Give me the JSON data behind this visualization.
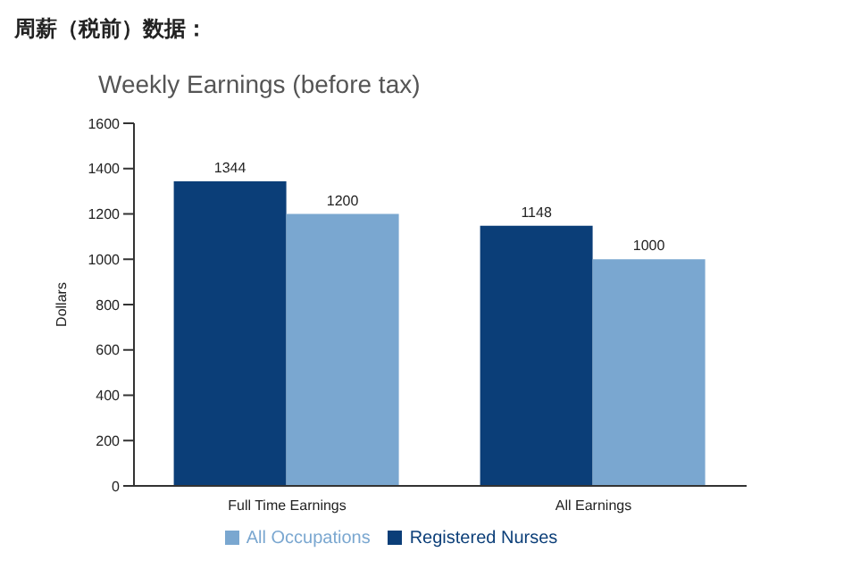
{
  "chart_data": {
    "type": "bar",
    "title": "周薪（税前）数据：",
    "subtitle": "Weekly Earnings (before tax)",
    "ylabel": "Dollars",
    "categories": [
      "Full Time Earnings",
      "All Earnings"
    ],
    "series": [
      {
        "name": "Registered Nurses",
        "color": "#0b3e78",
        "values": [
          1344,
          1148
        ]
      },
      {
        "name": "All Occupations",
        "color": "#7aa7d0",
        "values": [
          1200,
          1000
        ]
      }
    ],
    "ylim": [
      0,
      1600
    ],
    "yticks": [
      0,
      200,
      400,
      600,
      800,
      1000,
      1200,
      1400,
      1600
    ],
    "data_labels": true,
    "legend": "bottom",
    "grid": false
  }
}
